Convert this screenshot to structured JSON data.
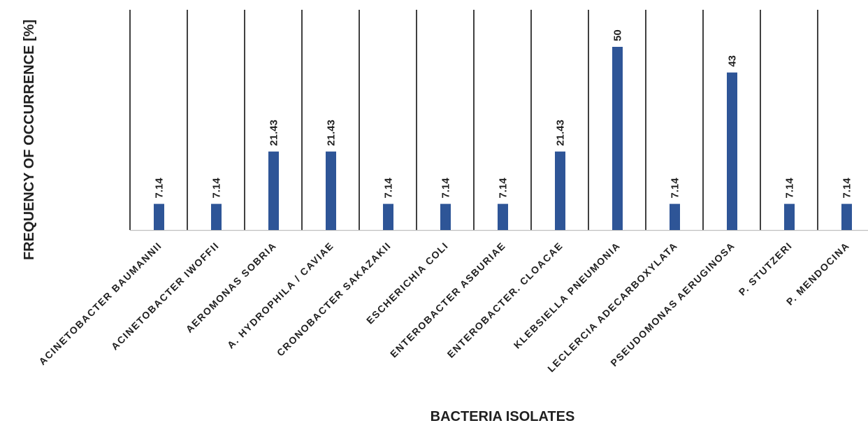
{
  "chart_data": {
    "type": "bar",
    "title": "",
    "xlabel": "BACTERIA ISOLATES",
    "ylabel": "FREQUENCY OF OCCURRENCE [%]",
    "ylim": [
      0,
      60
    ],
    "grid": false,
    "color": "#2E5597",
    "categories": [
      "ACINETOBACTER BAUMANNII",
      "ACINETOBACTER IWOFFII",
      "AEROMONAS SOBRIA",
      "A. HYDROPHILA / CAVIAE",
      "CRONOBACTER SAKAZAKII",
      "ESCHERICHIA COLI",
      "ENTEROBACTER ASBURIAE",
      "ENTEROBACTER. CLOACAE",
      "KLEBSIELLA PNEUMONIA",
      "LECLERCIA ADECARBOXYLATA",
      "PSEUDOMONAS AERUGINOSA",
      "P. STUTZERI",
      "P. MENDOCINA"
    ],
    "values": [
      7.14,
      7.14,
      21.43,
      21.43,
      7.14,
      7.14,
      7.14,
      21.43,
      50,
      7.14,
      43,
      7.14,
      7.14
    ],
    "data_labels": [
      "7.14",
      "7.14",
      "21.43",
      "21.43",
      "7.14",
      "7.14",
      "7.14",
      "21.43",
      "50",
      "7.14",
      "43",
      "7.14",
      "7.14"
    ]
  }
}
